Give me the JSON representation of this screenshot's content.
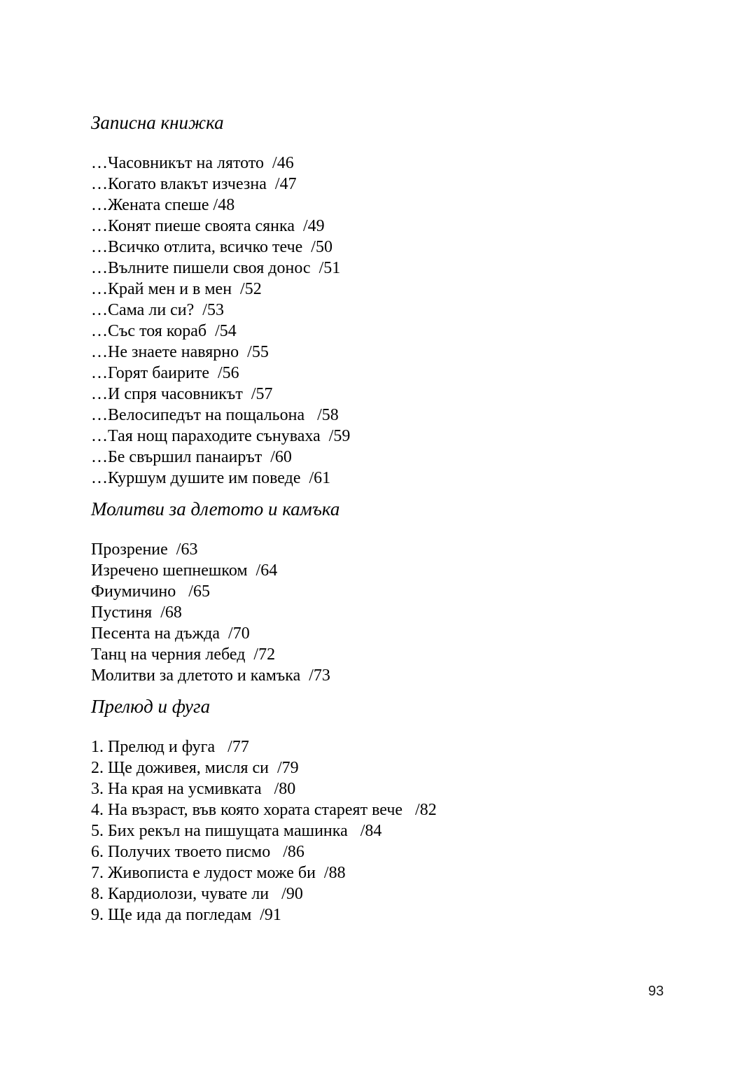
{
  "page": {
    "number": "93"
  },
  "sections": [
    {
      "heading": "Записна книжка",
      "entries": [
        {
          "title": "…Часовникът на лятото",
          "sep": "  ",
          "page": "/46"
        },
        {
          "title": "…Когато влакът изчезна",
          "sep": "  ",
          "page": "/47"
        },
        {
          "title": "…Жената спеше",
          "sep": " ",
          "page": "/48"
        },
        {
          "title": "…Конят пиеше своята сянка",
          "sep": "  ",
          "page": "/49"
        },
        {
          "title": "…Всичко отлита, всичко тече",
          "sep": "  ",
          "page": "/50"
        },
        {
          "title": "…Вълните пишели своя донос",
          "sep": "  ",
          "page": "/51"
        },
        {
          "title": "…Край мен и в мен",
          "sep": "  ",
          "page": "/52"
        },
        {
          "title": "…Сама ли си?",
          "sep": "  ",
          "page": "/53"
        },
        {
          "title": "…Със тоя кораб",
          "sep": "  ",
          "page": "/54"
        },
        {
          "title": "…Не знаете навярно",
          "sep": "  ",
          "page": "/55"
        },
        {
          "title": "…Горят баирите",
          "sep": "  ",
          "page": "/56"
        },
        {
          "title": "…И спря часовникът",
          "sep": "  ",
          "page": "/57"
        },
        {
          "title": "…Велосипедът на пощальона",
          "sep": "   ",
          "page": "/58"
        },
        {
          "title": "…Тая нощ параходите сънуваха",
          "sep": "  ",
          "page": "/59"
        },
        {
          "title": "…Бе свършил панаирът",
          "sep": "  ",
          "page": "/60"
        },
        {
          "title": "…Куршум душите им поведе",
          "sep": "  ",
          "page": "/61"
        }
      ]
    },
    {
      "heading": "Молитви за длетото и камъка",
      "entries": [
        {
          "title": "Прозрение",
          "sep": "  ",
          "page": "/63"
        },
        {
          "title": "Изречено шепнешком",
          "sep": "  ",
          "page": "/64"
        },
        {
          "title": "Фиумичино",
          "sep": "   ",
          "page": "/65"
        },
        {
          "title": "Пустиня",
          "sep": "  ",
          "page": "/68"
        },
        {
          "title": "Песента на дъжда",
          "sep": "  ",
          "page": "/70"
        },
        {
          "title": "Танц на черния лебед",
          "sep": "  ",
          "page": "/72"
        },
        {
          "title": "Молитви за длетото и камъка",
          "sep": "  ",
          "page": "/73"
        }
      ]
    },
    {
      "heading": "Прелюд и фуга",
      "entries": [
        {
          "title": "1. Прелюд и фуга",
          "sep": "   ",
          "page": "/77"
        },
        {
          "title": "2. Ще доживея, мисля си",
          "sep": "  ",
          "page": "/79"
        },
        {
          "title": "3. На края на усмивката",
          "sep": "   ",
          "page": "/80"
        },
        {
          "title": "4. На възраст, във която хората стареят вече",
          "sep": "   ",
          "page": "/82"
        },
        {
          "title": "5. Бих рекъл на пишущата машинка",
          "sep": "   ",
          "page": "/84"
        },
        {
          "title": "6. Получих твоето писмо",
          "sep": "   ",
          "page": "/86"
        },
        {
          "title": "7. Живописта е лудост може би",
          "sep": "  ",
          "page": "/88"
        },
        {
          "title": "8. Кардиолози, чувате ли",
          "sep": "   ",
          "page": "/90"
        },
        {
          "title": "9. Ще ида да погледам",
          "sep": "  ",
          "page": "/91"
        }
      ]
    }
  ]
}
